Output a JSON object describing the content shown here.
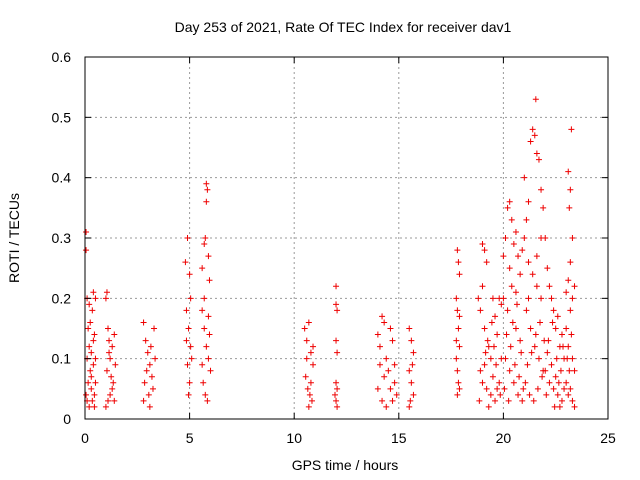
{
  "chart_data": {
    "type": "scatter",
    "title": "Day 253 of 2021, Rate Of TEC Index for receiver dav1",
    "xlabel": "GPS time / hours",
    "ylabel": "ROTI / TECUs",
    "xlim": [
      0,
      25
    ],
    "ylim": [
      0,
      0.6
    ],
    "x_ticks": [
      0,
      5,
      10,
      15,
      20,
      25
    ],
    "y_ticks": [
      0,
      0.1,
      0.2,
      0.3,
      0.4,
      0.5,
      0.6
    ],
    "x_tick_labels": [
      "0",
      "5",
      "10",
      "15",
      "20",
      "25"
    ],
    "y_tick_labels": [
      "0",
      "0.1",
      "0.2",
      "0.3",
      "0.4",
      "0.5",
      "0.6"
    ],
    "grid": true,
    "marker": "plus",
    "series_color": "#ee0000",
    "series": [
      {
        "points": [
          [
            0.05,
            0.31
          ],
          [
            0.05,
            0.28
          ],
          [
            0.1,
            0.2
          ],
          [
            0.15,
            0.15
          ],
          [
            0.2,
            0.12
          ],
          [
            0.1,
            0.1
          ],
          [
            0.25,
            0.08
          ],
          [
            0.3,
            0.05
          ],
          [
            0.05,
            0.04
          ],
          [
            0.2,
            0.02
          ],
          [
            0.35,
            0.18
          ],
          [
            0.4,
            0.21
          ],
          [
            0.45,
            0.14
          ],
          [
            0.5,
            0.2
          ],
          [
            0.4,
            0.09
          ],
          [
            0.5,
            0.06
          ],
          [
            0.35,
            0.03
          ],
          [
            0.15,
            0.06
          ],
          [
            0.3,
            0.11
          ],
          [
            0.45,
            0.04
          ],
          [
            0.5,
            0.1
          ],
          [
            0.25,
            0.16
          ],
          [
            0.2,
            0.19
          ],
          [
            0.4,
            0.13
          ],
          [
            0.3,
            0.07
          ],
          [
            0.1,
            0.03
          ],
          [
            0.45,
            0.02
          ],
          [
            1.0,
            0.2
          ],
          [
            1.05,
            0.21
          ],
          [
            1.1,
            0.15
          ],
          [
            1.15,
            0.13
          ],
          [
            1.2,
            0.1
          ],
          [
            1.25,
            0.07
          ],
          [
            1.3,
            0.05
          ],
          [
            1.1,
            0.03
          ],
          [
            1.0,
            0.02
          ],
          [
            1.4,
            0.14
          ],
          [
            1.45,
            0.09
          ],
          [
            1.3,
            0.12
          ],
          [
            1.2,
            0.04
          ],
          [
            1.35,
            0.06
          ],
          [
            1.05,
            0.08
          ],
          [
            1.4,
            0.03
          ],
          [
            1.15,
            0.11
          ],
          [
            2.8,
            0.16
          ],
          [
            2.9,
            0.13
          ],
          [
            3.0,
            0.11
          ],
          [
            3.1,
            0.09
          ],
          [
            3.2,
            0.07
          ],
          [
            3.3,
            0.15
          ],
          [
            2.85,
            0.06
          ],
          [
            3.05,
            0.04
          ],
          [
            3.25,
            0.05
          ],
          [
            2.95,
            0.08
          ],
          [
            3.15,
            0.12
          ],
          [
            3.35,
            0.1
          ],
          [
            2.8,
            0.03
          ],
          [
            3.1,
            0.02
          ],
          [
            4.8,
            0.26
          ],
          [
            4.9,
            0.3
          ],
          [
            5.0,
            0.24
          ],
          [
            4.85,
            0.18
          ],
          [
            4.95,
            0.15
          ],
          [
            5.05,
            0.12
          ],
          [
            4.9,
            0.09
          ],
          [
            5.0,
            0.06
          ],
          [
            4.95,
            0.04
          ],
          [
            5.1,
            0.1
          ],
          [
            4.85,
            0.13
          ],
          [
            5.05,
            0.2
          ],
          [
            5.6,
            0.25
          ],
          [
            5.7,
            0.29
          ],
          [
            5.75,
            0.3
          ],
          [
            5.8,
            0.39
          ],
          [
            5.85,
            0.38
          ],
          [
            5.8,
            0.36
          ],
          [
            5.9,
            0.27
          ],
          [
            5.95,
            0.23
          ],
          [
            5.6,
            0.18
          ],
          [
            5.7,
            0.15
          ],
          [
            5.8,
            0.12
          ],
          [
            5.9,
            0.1
          ],
          [
            6.0,
            0.08
          ],
          [
            5.65,
            0.06
          ],
          [
            5.75,
            0.04
          ],
          [
            5.85,
            0.03
          ],
          [
            5.95,
            0.14
          ],
          [
            5.7,
            0.2
          ],
          [
            5.9,
            0.17
          ],
          [
            5.6,
            0.09
          ],
          [
            10.5,
            0.15
          ],
          [
            10.6,
            0.13
          ],
          [
            10.7,
            0.16
          ],
          [
            10.8,
            0.11
          ],
          [
            10.9,
            0.09
          ],
          [
            10.55,
            0.07
          ],
          [
            10.65,
            0.05
          ],
          [
            10.75,
            0.04
          ],
          [
            10.85,
            0.03
          ],
          [
            10.6,
            0.1
          ],
          [
            10.8,
            0.06
          ],
          [
            10.7,
            0.02
          ],
          [
            10.9,
            0.12
          ],
          [
            12.0,
            0.22
          ],
          [
            12.0,
            0.19
          ],
          [
            12.05,
            0.18
          ],
          [
            12.0,
            0.13
          ],
          [
            12.05,
            0.11
          ],
          [
            12.0,
            0.06
          ],
          [
            12.05,
            0.05
          ],
          [
            12.0,
            0.03
          ],
          [
            12.05,
            0.02
          ],
          [
            11.95,
            0.04
          ],
          [
            14.0,
            0.14
          ],
          [
            14.1,
            0.12
          ],
          [
            14.2,
            0.17
          ],
          [
            14.3,
            0.16
          ],
          [
            14.4,
            0.1
          ],
          [
            14.5,
            0.08
          ],
          [
            14.6,
            0.15
          ],
          [
            14.7,
            0.13
          ],
          [
            14.8,
            0.06
          ],
          [
            14.9,
            0.04
          ],
          [
            14.0,
            0.05
          ],
          [
            14.2,
            0.03
          ],
          [
            14.4,
            0.02
          ],
          [
            14.6,
            0.05
          ],
          [
            14.8,
            0.09
          ],
          [
            14.3,
            0.07
          ],
          [
            14.1,
            0.09
          ],
          [
            14.7,
            0.03
          ],
          [
            15.5,
            0.15
          ],
          [
            15.6,
            0.13
          ],
          [
            15.7,
            0.11
          ],
          [
            15.5,
            0.08
          ],
          [
            15.6,
            0.06
          ],
          [
            15.7,
            0.04
          ],
          [
            15.55,
            0.03
          ],
          [
            15.65,
            0.09
          ],
          [
            15.5,
            0.02
          ],
          [
            17.8,
            0.28
          ],
          [
            17.85,
            0.26
          ],
          [
            17.9,
            0.24
          ],
          [
            17.75,
            0.2
          ],
          [
            17.8,
            0.18
          ],
          [
            17.85,
            0.15
          ],
          [
            17.9,
            0.12
          ],
          [
            17.75,
            0.1
          ],
          [
            17.8,
            0.08
          ],
          [
            17.85,
            0.06
          ],
          [
            17.9,
            0.05
          ],
          [
            17.8,
            0.04
          ],
          [
            17.75,
            0.13
          ],
          [
            17.9,
            0.17
          ],
          [
            18.8,
            0.2
          ],
          [
            18.9,
            0.18
          ],
          [
            19.0,
            0.29
          ],
          [
            19.1,
            0.28
          ],
          [
            19.2,
            0.26
          ],
          [
            19.0,
            0.22
          ],
          [
            19.1,
            0.15
          ],
          [
            19.3,
            0.12
          ],
          [
            19.4,
            0.1
          ],
          [
            19.5,
            0.2
          ],
          [
            19.6,
            0.17
          ],
          [
            19.7,
            0.14
          ],
          [
            19.8,
            0.2
          ],
          [
            19.9,
            0.19
          ],
          [
            18.9,
            0.08
          ],
          [
            19.0,
            0.06
          ],
          [
            19.2,
            0.05
          ],
          [
            19.4,
            0.04
          ],
          [
            19.6,
            0.03
          ],
          [
            19.8,
            0.06
          ],
          [
            19.1,
            0.09
          ],
          [
            19.3,
            0.02
          ],
          [
            19.5,
            0.07
          ],
          [
            19.7,
            0.05
          ],
          [
            19.9,
            0.1
          ],
          [
            18.85,
            0.03
          ],
          [
            19.25,
            0.13
          ],
          [
            19.45,
            0.16
          ],
          [
            19.65,
            0.09
          ],
          [
            19.85,
            0.04
          ],
          [
            19.15,
            0.11
          ],
          [
            19.55,
            0.12
          ],
          [
            20.0,
            0.27
          ],
          [
            20.1,
            0.3
          ],
          [
            20.2,
            0.35
          ],
          [
            20.3,
            0.36
          ],
          [
            20.4,
            0.33
          ],
          [
            20.5,
            0.29
          ],
          [
            20.6,
            0.31
          ],
          [
            20.7,
            0.27
          ],
          [
            20.8,
            0.24
          ],
          [
            20.9,
            0.28
          ],
          [
            20.0,
            0.2
          ],
          [
            20.2,
            0.18
          ],
          [
            20.4,
            0.22
          ],
          [
            20.6,
            0.15
          ],
          [
            20.8,
            0.13
          ],
          [
            20.1,
            0.1
          ],
          [
            20.3,
            0.08
          ],
          [
            20.5,
            0.06
          ],
          [
            20.7,
            0.04
          ],
          [
            20.9,
            0.03
          ],
          [
            20.15,
            0.14
          ],
          [
            20.35,
            0.12
          ],
          [
            20.55,
            0.09
          ],
          [
            20.75,
            0.07
          ],
          [
            20.95,
            0.05
          ],
          [
            20.05,
            0.05
          ],
          [
            20.25,
            0.03
          ],
          [
            20.45,
            0.16
          ],
          [
            20.65,
            0.19
          ],
          [
            20.85,
            0.11
          ],
          [
            20.6,
            0.21
          ],
          [
            20.3,
            0.25
          ],
          [
            21.0,
            0.4
          ],
          [
            21.1,
            0.33
          ],
          [
            21.2,
            0.36
          ],
          [
            21.3,
            0.46
          ],
          [
            21.4,
            0.48
          ],
          [
            21.5,
            0.47
          ],
          [
            21.55,
            0.53
          ],
          [
            21.6,
            0.44
          ],
          [
            21.7,
            0.43
          ],
          [
            21.8,
            0.38
          ],
          [
            21.9,
            0.35
          ],
          [
            21.0,
            0.3
          ],
          [
            21.2,
            0.26
          ],
          [
            21.4,
            0.24
          ],
          [
            21.6,
            0.22
          ],
          [
            21.8,
            0.2
          ],
          [
            21.1,
            0.18
          ],
          [
            21.3,
            0.15
          ],
          [
            21.5,
            0.12
          ],
          [
            21.7,
            0.1
          ],
          [
            21.9,
            0.08
          ],
          [
            21.05,
            0.06
          ],
          [
            21.25,
            0.04
          ],
          [
            21.45,
            0.03
          ],
          [
            21.65,
            0.05
          ],
          [
            21.85,
            0.07
          ],
          [
            21.15,
            0.09
          ],
          [
            21.35,
            0.11
          ],
          [
            21.55,
            0.14
          ],
          [
            21.75,
            0.16
          ],
          [
            21.95,
            0.13
          ],
          [
            21.6,
            0.27
          ],
          [
            21.8,
            0.3
          ],
          [
            21.2,
            0.2
          ],
          [
            22.0,
            0.3
          ],
          [
            22.1,
            0.25
          ],
          [
            22.2,
            0.22
          ],
          [
            22.3,
            0.2
          ],
          [
            22.4,
            0.18
          ],
          [
            22.5,
            0.15
          ],
          [
            22.6,
            0.17
          ],
          [
            22.7,
            0.12
          ],
          [
            22.8,
            0.14
          ],
          [
            22.9,
            0.1
          ],
          [
            22.0,
            0.08
          ],
          [
            22.2,
            0.06
          ],
          [
            22.4,
            0.05
          ],
          [
            22.6,
            0.04
          ],
          [
            22.8,
            0.03
          ],
          [
            22.1,
            0.11
          ],
          [
            22.3,
            0.09
          ],
          [
            22.5,
            0.07
          ],
          [
            22.7,
            0.02
          ],
          [
            22.9,
            0.05
          ],
          [
            22.15,
            0.13
          ],
          [
            22.35,
            0.16
          ],
          [
            22.55,
            0.1
          ],
          [
            22.75,
            0.08
          ],
          [
            22.05,
            0.04
          ],
          [
            22.45,
            0.02
          ],
          [
            22.65,
            0.06
          ],
          [
            22.85,
            0.12
          ],
          [
            23.1,
            0.41
          ],
          [
            23.2,
            0.38
          ],
          [
            23.25,
            0.48
          ],
          [
            23.15,
            0.35
          ],
          [
            23.3,
            0.3
          ],
          [
            23.2,
            0.26
          ],
          [
            23.1,
            0.23
          ],
          [
            23.0,
            0.21
          ],
          [
            23.3,
            0.2
          ],
          [
            23.4,
            0.22
          ],
          [
            23.2,
            0.18
          ],
          [
            23.0,
            0.15
          ],
          [
            23.1,
            0.12
          ],
          [
            23.3,
            0.1
          ],
          [
            23.4,
            0.08
          ],
          [
            23.0,
            0.06
          ],
          [
            23.2,
            0.05
          ],
          [
            23.1,
            0.04
          ],
          [
            23.3,
            0.03
          ],
          [
            23.4,
            0.02
          ],
          [
            23.15,
            0.08
          ],
          [
            23.25,
            0.14
          ],
          [
            23.05,
            0.1
          ]
        ]
      }
    ]
  }
}
